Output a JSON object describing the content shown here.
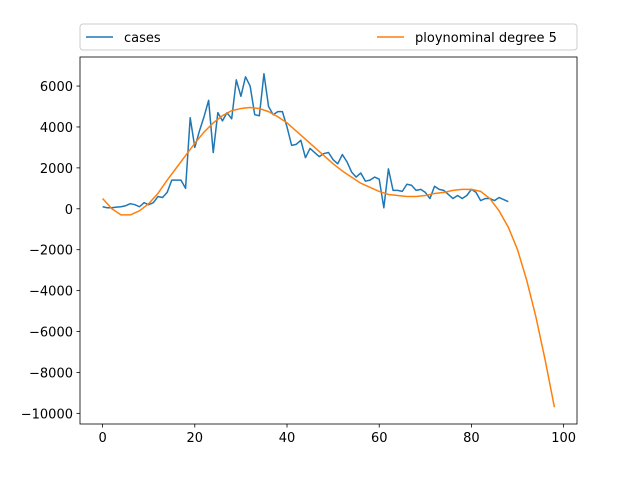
{
  "chart_data": {
    "type": "line",
    "series": [
      {
        "name": "cases",
        "color": "#1f77b4",
        "x": [
          0,
          1,
          2,
          3,
          4,
          5,
          6,
          7,
          8,
          9,
          10,
          11,
          12,
          13,
          14,
          15,
          16,
          17,
          18,
          19,
          20,
          21,
          22,
          23,
          24,
          25,
          26,
          27,
          28,
          29,
          30,
          31,
          32,
          33,
          34,
          35,
          36,
          37,
          38,
          39,
          40,
          41,
          42,
          43,
          44,
          45,
          46,
          47,
          48,
          49,
          50,
          51,
          52,
          53,
          54,
          55,
          56,
          57,
          58,
          59,
          60,
          61,
          62,
          63,
          64,
          65,
          66,
          67,
          68,
          69,
          70,
          71,
          72,
          73,
          74,
          75,
          76,
          77,
          78,
          79,
          80,
          81,
          82,
          83,
          84,
          85,
          86,
          87,
          88
        ],
        "values": [
          100,
          50,
          50,
          80,
          100,
          150,
          250,
          200,
          100,
          300,
          200,
          300,
          600,
          550,
          800,
          1400,
          1400,
          1400,
          1000,
          4450,
          3000,
          3800,
          4500,
          5300,
          2750,
          4700,
          4300,
          4700,
          4400,
          6300,
          5500,
          6450,
          6000,
          4600,
          4550,
          6600,
          5000,
          4600,
          4750,
          4750,
          4000,
          3100,
          3150,
          3350,
          2500,
          2950,
          2750,
          2550,
          2700,
          2750,
          2400,
          2200,
          2650,
          2300,
          1800,
          1550,
          1750,
          1350,
          1400,
          1550,
          1450,
          50,
          1950,
          900,
          900,
          850,
          1200,
          1150,
          900,
          950,
          800,
          500,
          1100,
          950,
          900,
          700,
          500,
          650,
          500,
          650,
          950,
          800,
          400,
          500,
          500,
          400,
          550,
          450,
          350
        ]
      },
      {
        "name": "ploynominal degree 5",
        "color": "#ff7f0e",
        "x": [
          0,
          2,
          4,
          6,
          8,
          10,
          12,
          14,
          16,
          18,
          20,
          22,
          24,
          26,
          28,
          30,
          32,
          34,
          36,
          38,
          40,
          42,
          44,
          46,
          48,
          50,
          52,
          54,
          56,
          58,
          60,
          62,
          64,
          66,
          68,
          70,
          72,
          74,
          76,
          78,
          80,
          82,
          84,
          86,
          88,
          90,
          92,
          94,
          96,
          98
        ],
        "values": [
          500,
          0,
          -300,
          -300,
          -100,
          250,
          750,
          1400,
          2000,
          2600,
          3200,
          3750,
          4200,
          4550,
          4800,
          4900,
          4950,
          4900,
          4750,
          4500,
          4200,
          3800,
          3400,
          3000,
          2600,
          2200,
          1850,
          1550,
          1250,
          1050,
          850,
          700,
          650,
          600,
          600,
          650,
          750,
          800,
          900,
          950,
          950,
          850,
          500,
          -100,
          -900,
          -2000,
          -3500,
          -5300,
          -7400,
          -9700
        ]
      }
    ],
    "xlim": [
      -4.9,
      102.9
    ],
    "ylim": [
      -10520,
      7420
    ],
    "xticks": [
      0,
      20,
      40,
      60,
      80,
      100
    ],
    "yticks": [
      {
        "value": -10000,
        "label": "−10000"
      },
      {
        "value": -8000,
        "label": "−8000"
      },
      {
        "value": -6000,
        "label": "−6000"
      },
      {
        "value": -4000,
        "label": "−4000"
      },
      {
        "value": -2000,
        "label": "−2000"
      },
      0,
      2000,
      4000,
      6000
    ],
    "legend": "top-expand"
  }
}
